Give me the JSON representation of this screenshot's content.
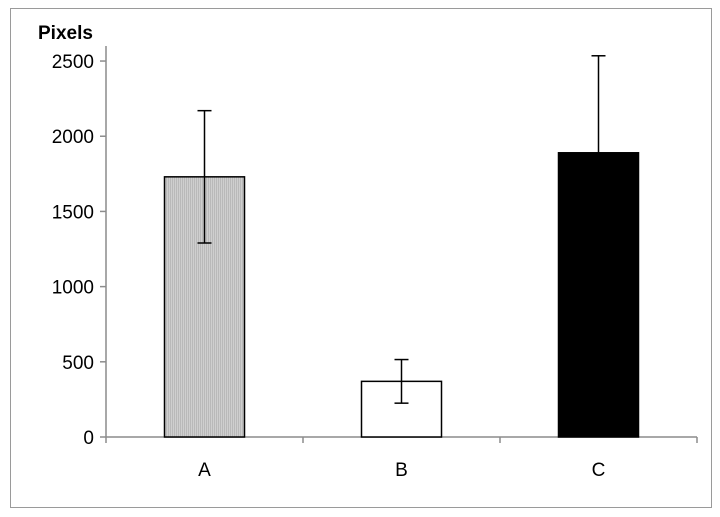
{
  "chart_data": {
    "type": "bar",
    "ylabel": "Pixels",
    "categories": [
      "A",
      "B",
      "C"
    ],
    "values": [
      1730,
      370,
      1890
    ],
    "error_upper": [
      2170,
      515,
      2535
    ],
    "error_lower": [
      1290,
      225,
      1890
    ],
    "ylim": [
      0,
      2600
    ],
    "yticks": [
      0,
      500,
      1000,
      1500,
      2000,
      2500
    ],
    "grid": false,
    "legend": "none",
    "bar_colors": [
      "#c6c6c6",
      "#ffffff",
      "#000000"
    ],
    "bar_pattern": [
      "vertical-lines",
      "none",
      "none"
    ],
    "edge_color": "#000000"
  }
}
